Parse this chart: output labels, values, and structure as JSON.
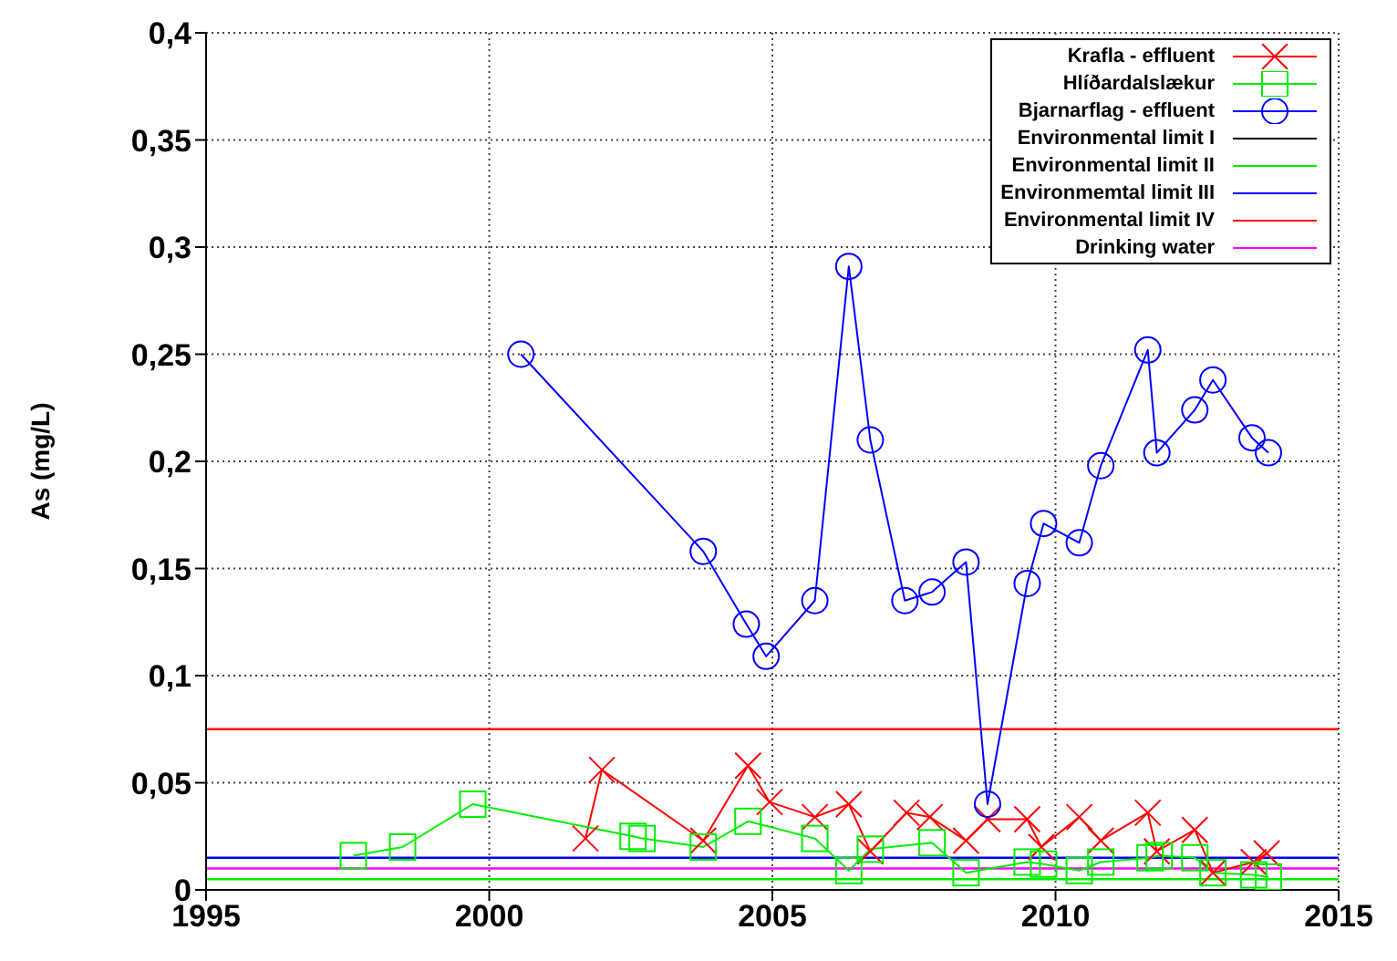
{
  "chart_data": {
    "type": "line",
    "ylabel": "As (mg/L)",
    "xlim": [
      1995,
      2015
    ],
    "xticks": [
      1995,
      2000,
      2005,
      2010,
      2015
    ],
    "ylim": [
      0,
      0.4
    ],
    "yticks": [
      {
        "value": 0,
        "label": "0"
      },
      {
        "value": 0.05,
        "label": "0,05"
      },
      {
        "value": 0.1,
        "label": "0,1"
      },
      {
        "value": 0.15,
        "label": "0,15"
      },
      {
        "value": 0.2,
        "label": "0,2"
      },
      {
        "value": 0.25,
        "label": "0,25"
      },
      {
        "value": 0.3,
        "label": "0,3"
      },
      {
        "value": 0.35,
        "label": "0,35"
      },
      {
        "value": 0.4,
        "label": "0,4"
      }
    ],
    "grid": true,
    "legend": "top right",
    "line_style": "solid",
    "series": [
      {
        "name": "Krafla - effluent",
        "color": "#ff0000",
        "marker": "cross",
        "x": [
          2001.7,
          2001.99,
          2003.78,
          2004.57,
          2004.95,
          2005.75,
          2006.35,
          2006.73,
          2007.37,
          2007.78,
          2008.42,
          2008.8,
          2009.5,
          2009.75,
          2010.42,
          2010.8,
          2011.63,
          2011.79,
          2012.46,
          2012.78,
          2013.5,
          2013.73
        ],
        "values": [
          0.024,
          0.056,
          0.023,
          0.058,
          0.041,
          0.034,
          0.04,
          0.018,
          0.036,
          0.034,
          0.023,
          0.033,
          0.033,
          0.02,
          0.034,
          0.023,
          0.036,
          0.018,
          0.028,
          0.008,
          0.013,
          0.017
        ]
      },
      {
        "name": "Hlíðardalslækur",
        "color": "#00ee00",
        "marker": "square",
        "x": [
          1997.6,
          1998.47,
          1999.71,
          2002.54,
          2002.7,
          2003.78,
          2004.57,
          2005.75,
          2006.35,
          2006.73,
          2007.82,
          2008.42,
          2009.5,
          2009.79,
          2010.42,
          2010.8,
          2011.67,
          2011.83,
          2012.46,
          2012.78,
          2013.5,
          2013.76
        ],
        "values": [
          0.016,
          0.02,
          0.04,
          0.025,
          0.024,
          0.02,
          0.032,
          0.024,
          0.009,
          0.019,
          0.022,
          0.008,
          0.013,
          0.012,
          0.009,
          0.013,
          0.015,
          0.016,
          0.015,
          0.008,
          0.007,
          0.006
        ]
      },
      {
        "name": "Bjarnarflag - effluent",
        "color": "#0000ff",
        "marker": "circle",
        "x": [
          2000.56,
          2003.78,
          2004.54,
          2004.89,
          2005.75,
          2006.35,
          2006.73,
          2007.34,
          2007.82,
          2008.42,
          2008.8,
          2009.5,
          2009.79,
          2010.42,
          2010.8,
          2011.63,
          2011.79,
          2012.46,
          2012.78,
          2013.47,
          2013.76
        ],
        "values": [
          0.25,
          0.158,
          0.124,
          0.109,
          0.135,
          0.291,
          0.21,
          0.135,
          0.139,
          0.153,
          0.04,
          0.143,
          0.171,
          0.162,
          0.198,
          0.252,
          0.204,
          0.224,
          0.238,
          0.211,
          0.204
        ]
      },
      {
        "name": "Environmental limit I",
        "color": "#000000",
        "marker": "none"
      }
    ],
    "ref_lines": [
      {
        "axis": "y",
        "value": 0.005,
        "label": "Environmental limit II",
        "color": "#00ee00"
      },
      {
        "axis": "y",
        "value": 0.015,
        "label": "Environmemtal limit III",
        "color": "#0000ff"
      },
      {
        "axis": "y",
        "value": 0.075,
        "label": "Environmental limit IV",
        "color": "#ff0000"
      },
      {
        "axis": "y",
        "value": 0.01,
        "label": "Drinking water",
        "color": "#ff00ff"
      }
    ]
  }
}
